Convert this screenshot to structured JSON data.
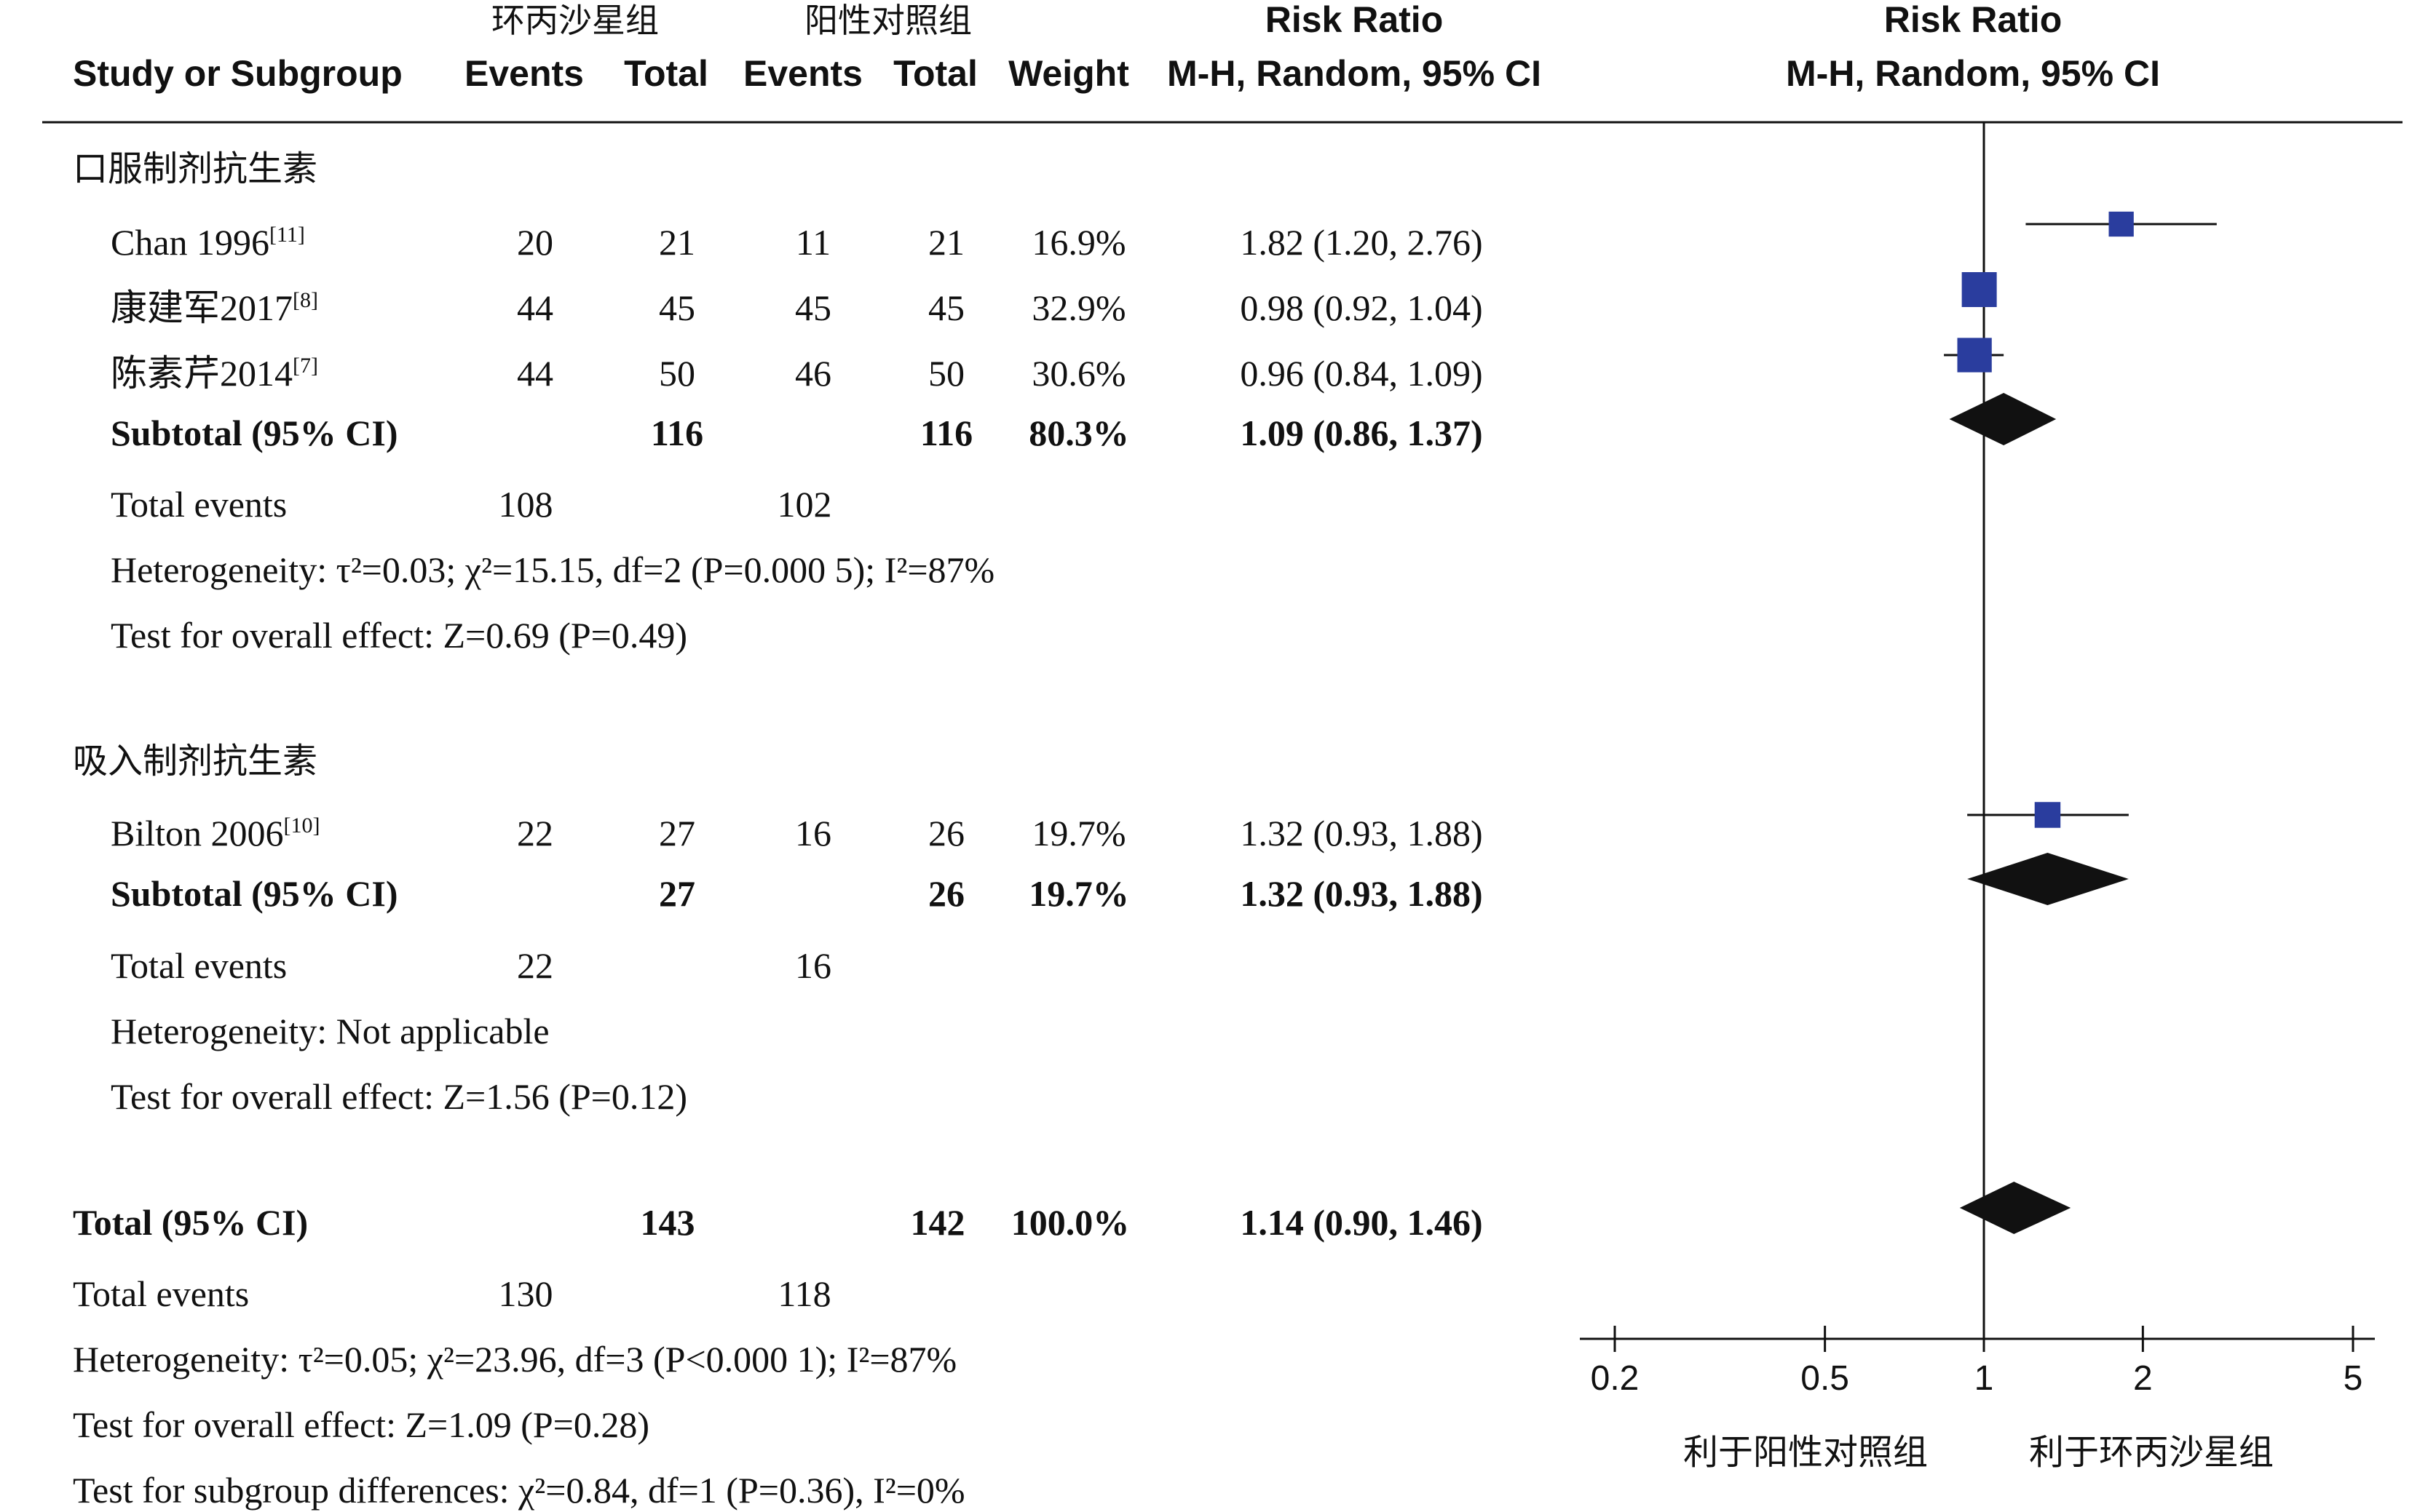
{
  "header": {
    "exp_group": "环丙沙星组",
    "ctl_group": "阳性对照组",
    "study_col": "Study or Subgroup",
    "events": "Events",
    "total": "Total",
    "weight": "Weight",
    "rr_title": "Risk Ratio",
    "rr_method": "M-H, Random, 95% CI"
  },
  "groups": [
    {
      "title": "口服制剂抗生素",
      "studies": [
        {
          "name": "Chan 1996",
          "ref": "[11]",
          "e_events": "20",
          "e_total": "21",
          "c_events": "11",
          "c_total": "21",
          "weight": "16.9%",
          "ci_text": "1.82 (1.20, 2.76)"
        },
        {
          "name": "康建军2017",
          "ref": "[8]",
          "e_events": "44",
          "e_total": "45",
          "c_events": "45",
          "c_total": "45",
          "weight": "32.9%",
          "ci_text": "0.98 (0.92, 1.04)"
        },
        {
          "name": "陈素芹2014",
          "ref": "[7]",
          "e_events": "44",
          "e_total": "50",
          "c_events": "46",
          "c_total": "50",
          "weight": "30.6%",
          "ci_text": "0.96 (0.84, 1.09)"
        }
      ],
      "subtotal": {
        "label": "Subtotal (95% CI)",
        "e_total": "116",
        "c_total": "116",
        "weight": "80.3%",
        "ci_text": "1.09 (0.86, 1.37)"
      },
      "total_events": {
        "label": "Total events",
        "e": "108",
        "c": "102"
      },
      "heterogeneity": "Heterogeneity: τ²=0.03; χ²=15.15, df=2 (P=0.000 5); I²=87%",
      "overall": "Test for overall effect: Z=0.69 (P=0.49)"
    },
    {
      "title": "吸入制剂抗生素",
      "studies": [
        {
          "name": "Bilton 2006",
          "ref": "[10]",
          "e_events": "22",
          "e_total": "27",
          "c_events": "16",
          "c_total": "26",
          "weight": "19.7%",
          "ci_text": "1.32 (0.93, 1.88)"
        }
      ],
      "subtotal": {
        "label": "Subtotal (95% CI)",
        "e_total": "27",
        "c_total": "26",
        "weight": "19.7%",
        "ci_text": "1.32 (0.93, 1.88)"
      },
      "total_events": {
        "label": "Total events",
        "e": "22",
        "c": "16"
      },
      "heterogeneity": "Heterogeneity: Not applicable",
      "overall": "Test for overall effect: Z=1.56 (P=0.12)"
    }
  ],
  "total": {
    "label": "Total (95% CI)",
    "e_total": "143",
    "c_total": "142",
    "weight": "100.0%",
    "ci_text": "1.14 (0.90, 1.46)",
    "events_label": "Total events",
    "e_events": "130",
    "c_events": "118",
    "heterogeneity": "Heterogeneity: τ²=0.05; χ²=23.96, df=3 (P<0.000 1); I²=87%",
    "overall": "Test for overall effect: Z=1.09 (P=0.28)",
    "subgroup": "Test for subgroup differences: χ²=0.84, df=1 (P=0.36), I²=0%"
  },
  "axis": {
    "favours_left": "利于阳性对照组",
    "favours_right": "利于环丙沙星组"
  },
  "colors": {
    "study_marker": "#2a3d9e",
    "diamond": "#111111",
    "line": "#111111"
  },
  "chart_data": {
    "type": "forest",
    "scale": "log",
    "xlim": [
      0.2,
      5
    ],
    "null_line": 1,
    "ticks": [
      0.2,
      0.5,
      1,
      2,
      5
    ],
    "tick_labels": [
      "0.2",
      "0.5",
      "1",
      "2",
      "5"
    ],
    "xlabel_left": "利于阳性对照组",
    "xlabel_right": "利于环丙沙星组",
    "studies": [
      {
        "name": "Chan 1996",
        "rr": 1.82,
        "lo": 1.2,
        "hi": 2.76,
        "weight": 16.9
      },
      {
        "name": "康建军2017",
        "rr": 0.98,
        "lo": 0.92,
        "hi": 1.04,
        "weight": 32.9
      },
      {
        "name": "陈素芹2014",
        "rr": 0.96,
        "lo": 0.84,
        "hi": 1.09,
        "weight": 30.6
      },
      {
        "name": "Bilton 2006",
        "rr": 1.32,
        "lo": 0.93,
        "hi": 1.88,
        "weight": 19.7
      }
    ],
    "subtotals": [
      {
        "name": "口服制剂抗生素 Subtotal",
        "rr": 1.09,
        "lo": 0.86,
        "hi": 1.37
      },
      {
        "name": "吸入制剂抗生素 Subtotal",
        "rr": 1.32,
        "lo": 0.93,
        "hi": 1.88
      }
    ],
    "overall": {
      "name": "Total",
      "rr": 1.14,
      "lo": 0.9,
      "hi": 1.46
    }
  }
}
